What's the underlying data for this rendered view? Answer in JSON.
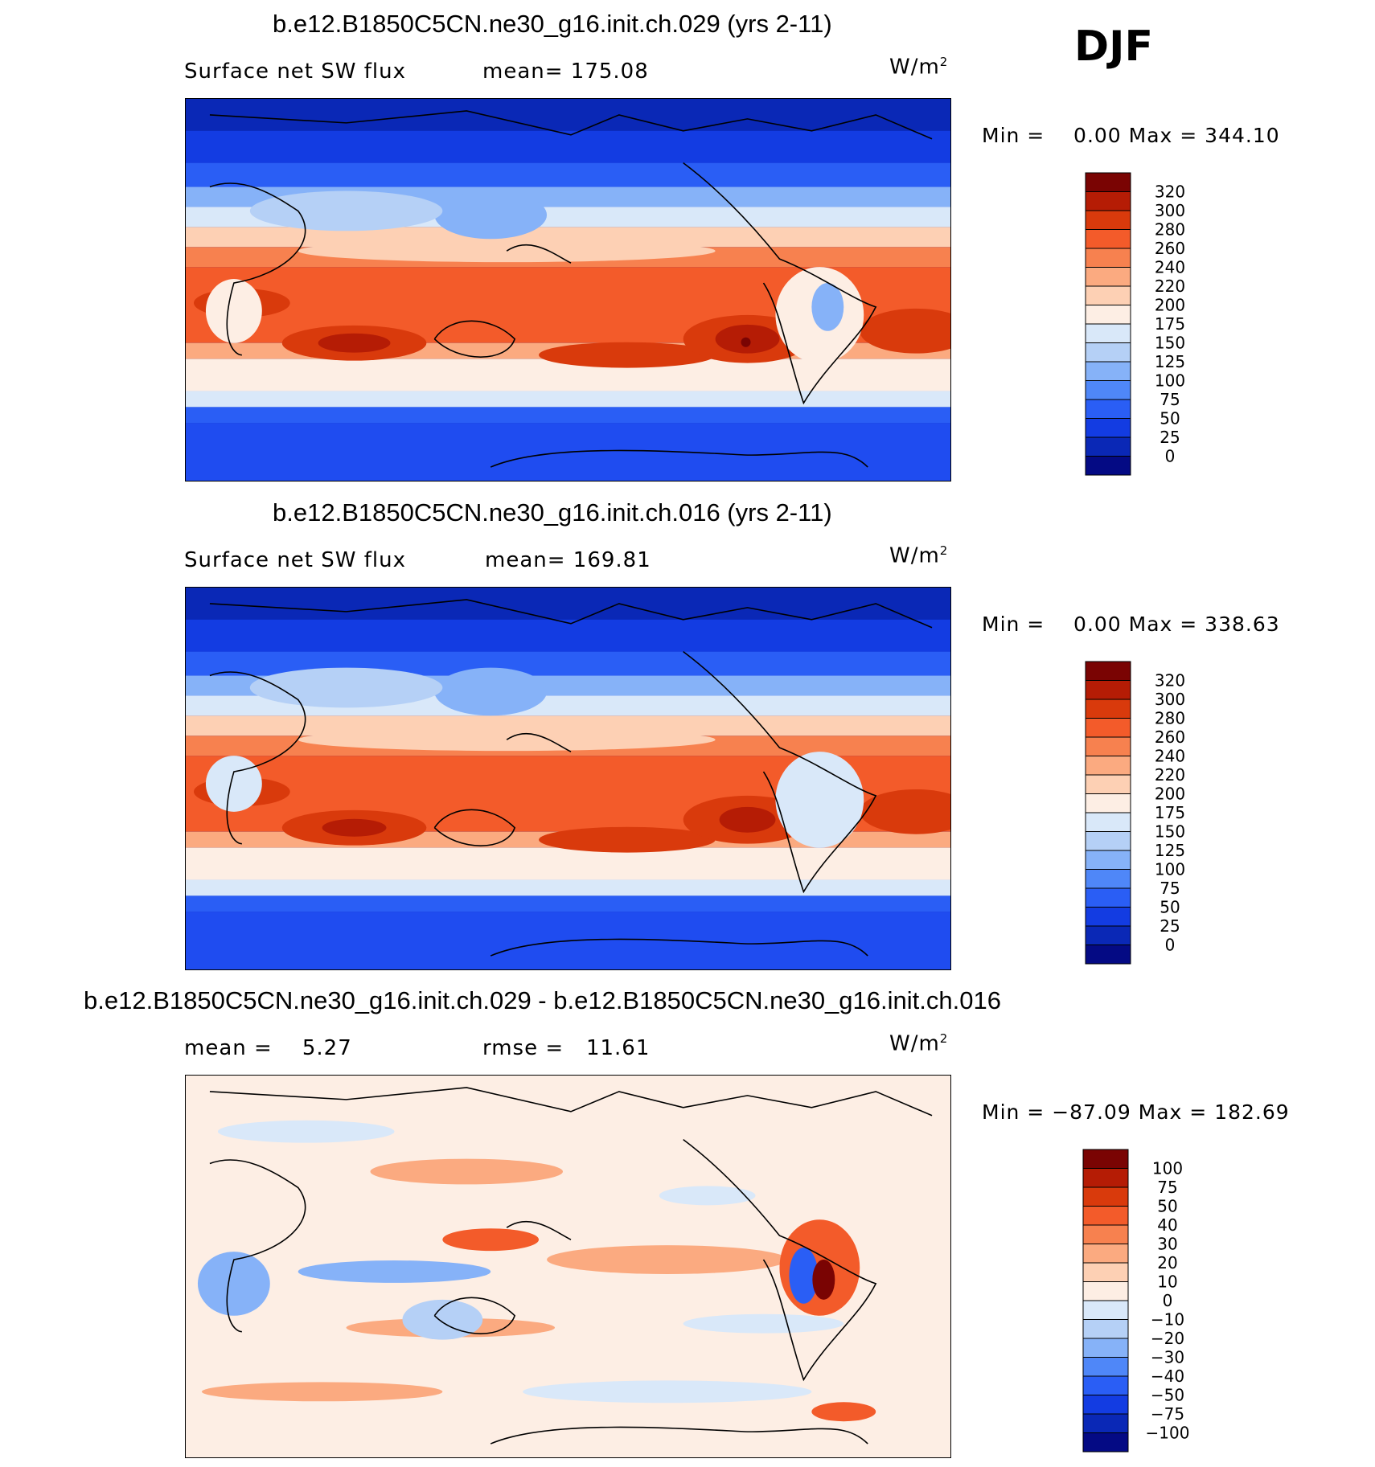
{
  "season": "DJF",
  "units_sup": "2",
  "panels": [
    {
      "title": "b.e12.B1850C5CN.ne30_g16.init.ch.029 (yrs 2-11)",
      "left_label": "Surface net SW flux",
      "mid_label": "mean= 175.08",
      "units": "W/m",
      "minmax": "Min =    0.00 Max = 344.10",
      "colorbar": {
        "labels": [
          "320",
          "300",
          "280",
          "260",
          "240",
          "220",
          "200",
          "175",
          "150",
          "125",
          "100",
          "75",
          "50",
          "25",
          "0"
        ],
        "colors": [
          "#7a0403",
          "#b51c05",
          "#d93a0c",
          "#f35b2a",
          "#f7814f",
          "#fbaa80",
          "#fdd0b4",
          "#fdeee4",
          "#d9e8f9",
          "#b5d0f6",
          "#86b2f8",
          "#4f87f8",
          "#2a5ef5",
          "#133ce2",
          "#0a28b6",
          "#040a84"
        ]
      },
      "chart_data": {
        "type": "heatmap",
        "title": "b.e12.B1850C5CN.ne30_g16.init.ch.029 (yrs 2-11)",
        "variable": "Surface net SW flux",
        "units": "W/m2",
        "mean": 175.08,
        "min": 0.0,
        "max": 344.1,
        "levels": [
          0,
          25,
          50,
          75,
          100,
          125,
          150,
          175,
          200,
          220,
          240,
          260,
          280,
          300,
          320
        ]
      }
    },
    {
      "title": "b.e12.B1850C5CN.ne30_g16.init.ch.016 (yrs 2-11)",
      "left_label": "Surface net SW flux",
      "mid_label": "mean= 169.81",
      "units": "W/m",
      "minmax": "Min =    0.00 Max = 338.63",
      "colorbar": {
        "labels": [
          "320",
          "300",
          "280",
          "260",
          "240",
          "220",
          "200",
          "175",
          "150",
          "125",
          "100",
          "75",
          "50",
          "25",
          "0"
        ],
        "colors": [
          "#7a0403",
          "#b51c05",
          "#d93a0c",
          "#f35b2a",
          "#f7814f",
          "#fbaa80",
          "#fdd0b4",
          "#fdeee4",
          "#d9e8f9",
          "#b5d0f6",
          "#86b2f8",
          "#4f87f8",
          "#2a5ef5",
          "#133ce2",
          "#0a28b6",
          "#040a84"
        ]
      },
      "chart_data": {
        "type": "heatmap",
        "title": "b.e12.B1850C5CN.ne30_g16.init.ch.016 (yrs 2-11)",
        "variable": "Surface net SW flux",
        "units": "W/m2",
        "mean": 169.81,
        "min": 0.0,
        "max": 338.63,
        "levels": [
          0,
          25,
          50,
          75,
          100,
          125,
          150,
          175,
          200,
          220,
          240,
          260,
          280,
          300,
          320
        ]
      }
    },
    {
      "title": "b.e12.B1850C5CN.ne30_g16.init.ch.029 - b.e12.B1850C5CN.ne30_g16.init.ch.016",
      "left_label": "mean =    5.27",
      "mid_label": "rmse =   11.61",
      "units": "W/m",
      "minmax": "Min = −87.09 Max = 182.69",
      "colorbar": {
        "labels": [
          "100",
          "75",
          "50",
          "40",
          "30",
          "20",
          "10",
          "0",
          "−10",
          "−20",
          "−30",
          "−40",
          "−50",
          "−75",
          "−100"
        ],
        "colors": [
          "#7a0403",
          "#b51c05",
          "#d93a0c",
          "#f35b2a",
          "#f7814f",
          "#fbaa80",
          "#fdd0b4",
          "#fdeee4",
          "#d9e8f9",
          "#b5d0f6",
          "#86b2f8",
          "#4f87f8",
          "#2a5ef5",
          "#133ce2",
          "#0a28b6",
          "#040a84"
        ]
      },
      "chart_data": {
        "type": "heatmap",
        "title": "b.e12.B1850C5CN.ne30_g16.init.ch.029 - b.e12.B1850C5CN.ne30_g16.init.ch.016",
        "units": "W/m2",
        "mean": 5.27,
        "rmse": 11.61,
        "min": -87.09,
        "max": 182.69,
        "levels": [
          -100,
          -75,
          -50,
          -40,
          -30,
          -20,
          -10,
          0,
          10,
          20,
          30,
          40,
          50,
          75,
          100
        ]
      }
    }
  ]
}
